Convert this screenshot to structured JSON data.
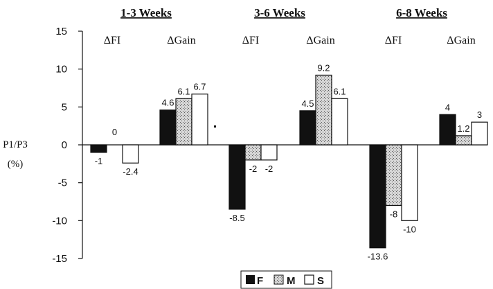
{
  "chart_data": {
    "type": "bar",
    "ylabel_lines": [
      "P1/P3",
      "(%)"
    ],
    "ylim": [
      -15,
      15
    ],
    "yticks": [
      "15",
      "10",
      "5",
      "0",
      "-5",
      "-10",
      "-15"
    ],
    "grid": false,
    "legend_position": "bottom-center",
    "periods": [
      "1-3 Weeks",
      "3-6 Weeks",
      "6-8 Weeks"
    ],
    "metric_labels": [
      "ΔFI",
      "ΔGain"
    ],
    "series": [
      {
        "name": "F",
        "color": "#111111",
        "pattern": "solid"
      },
      {
        "name": "M",
        "color": "#bdbdbd",
        "pattern": "stipple"
      },
      {
        "name": "S",
        "color": "#ffffff",
        "pattern": "open"
      }
    ],
    "groups": [
      {
        "period": "1-3 Weeks",
        "metric": "ΔFI",
        "values": [
          -1,
          0,
          -2.4
        ],
        "labels": [
          "-1",
          "0",
          "-2.4"
        ]
      },
      {
        "period": "1-3 Weeks",
        "metric": "ΔGain",
        "values": [
          4.6,
          6.1,
          6.7
        ],
        "labels": [
          "4.6",
          "6.1",
          "6.7"
        ]
      },
      {
        "period": "3-6 Weeks",
        "metric": "ΔFI",
        "values": [
          -8.5,
          -2,
          -2
        ],
        "labels": [
          "-8.5",
          "-2",
          "-2"
        ]
      },
      {
        "period": "3-6 Weeks",
        "metric": "ΔGain",
        "values": [
          4.5,
          9.2,
          6.1
        ],
        "labels": [
          "4.5",
          "9.2",
          "6.1"
        ]
      },
      {
        "period": "6-8 Weeks",
        "metric": "ΔFI",
        "values": [
          -13.6,
          -8,
          -10
        ],
        "labels": [
          "-13.6",
          "-8",
          "-10"
        ]
      },
      {
        "period": "6-8 Weeks",
        "metric": "ΔGain",
        "values": [
          4,
          1.2,
          3
        ],
        "labels": [
          "4",
          "1.2",
          "3"
        ]
      }
    ]
  }
}
